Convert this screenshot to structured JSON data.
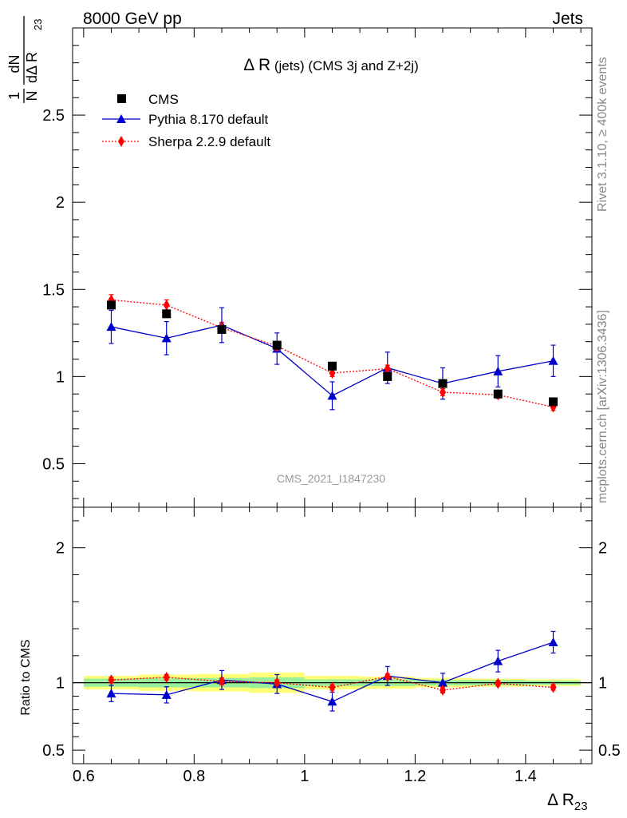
{
  "header": {
    "left": "8000 GeV pp",
    "right": "Jets"
  },
  "side_labels": {
    "rivet": "Rivet 3.1.10, ≥ 400k events",
    "mcplots": "mcplots.cern.ch [arXiv:1306.3436]"
  },
  "chart_data": {
    "type": "scatter",
    "title_main": "Δ R",
    "title_rest": " (jets) (CMS 3j and Z+2j)",
    "watermark": "CMS_2021_I1847230",
    "ylabel_top": "1/N dN/dΔ R23",
    "ylabel_bottom": "Ratio to CMS",
    "xlabel": "Δ R",
    "xlabel_sub": "23",
    "xlim": [
      0.58,
      1.52
    ],
    "ylim_main": [
      0.25,
      3.0
    ],
    "ylim_ratio": [
      0.4,
      2.3
    ],
    "x_ticks": [
      "0.6",
      "0.8",
      "1",
      "1.2",
      "1.4"
    ],
    "y_ticks_main": [
      "0.5",
      "1",
      "1.5",
      "2",
      "2.5"
    ],
    "y_ticks_ratio": [
      "0.5",
      "1",
      "2"
    ],
    "x": [
      0.65,
      0.75,
      0.85,
      0.95,
      1.05,
      1.15,
      1.25,
      1.35,
      1.45
    ],
    "series": [
      {
        "name": "CMS",
        "color": "#000000",
        "marker": "square",
        "values": [
          1.41,
          1.36,
          1.27,
          1.18,
          1.06,
          1.0,
          0.96,
          0.9,
          0.855
        ],
        "errors": [
          0.02,
          0.02,
          0.02,
          0.02,
          0.015,
          0.015,
          0.015,
          0.015,
          0.015
        ],
        "ratio": [
          1.0,
          1.0,
          1.0,
          1.0,
          1.0,
          1.0,
          1.0,
          1.0,
          1.0
        ]
      },
      {
        "name": "Pythia 8.170 default",
        "color": "#0000cc",
        "marker": "triangle",
        "line": "solid",
        "values": [
          1.285,
          1.22,
          1.295,
          1.16,
          0.89,
          1.05,
          0.96,
          1.03,
          1.09
        ],
        "errors": [
          0.095,
          0.095,
          0.1,
          0.09,
          0.08,
          0.09,
          0.09,
          0.09,
          0.09
        ],
        "ratio": [
          0.92,
          0.91,
          1.02,
          0.99,
          0.86,
          1.05,
          1.0,
          1.16,
          1.3
        ],
        "ratio_errors": [
          0.06,
          0.06,
          0.07,
          0.07,
          0.07,
          0.07,
          0.07,
          0.08,
          0.08
        ]
      },
      {
        "name": "Sherpa 2.2.9 default",
        "color": "#ff0000",
        "marker": "diamond",
        "line": "dotted",
        "values": [
          1.44,
          1.41,
          1.28,
          1.175,
          1.02,
          1.045,
          0.91,
          0.895,
          0.825
        ],
        "errors": [
          0.03,
          0.03,
          0.03,
          0.025,
          0.02,
          0.02,
          0.02,
          0.02,
          0.02
        ],
        "ratio": [
          1.02,
          1.04,
          1.01,
          1.0,
          0.965,
          1.045,
          0.945,
          0.995,
          0.965
        ],
        "ratio_errors": [
          0.02,
          0.02,
          0.025,
          0.02,
          0.02,
          0.02,
          0.02,
          0.02,
          0.02
        ]
      }
    ],
    "band_inner": [
      0.03,
      0.035,
      0.035,
      0.04,
      0.025,
      0.025,
      0.02,
      0.02,
      0.015
    ],
    "band_outer": [
      0.05,
      0.06,
      0.065,
      0.075,
      0.05,
      0.045,
      0.035,
      0.03,
      0.025
    ],
    "colors": {
      "band_inner": "#99ee99",
      "band_outer": "#ffff77"
    }
  }
}
